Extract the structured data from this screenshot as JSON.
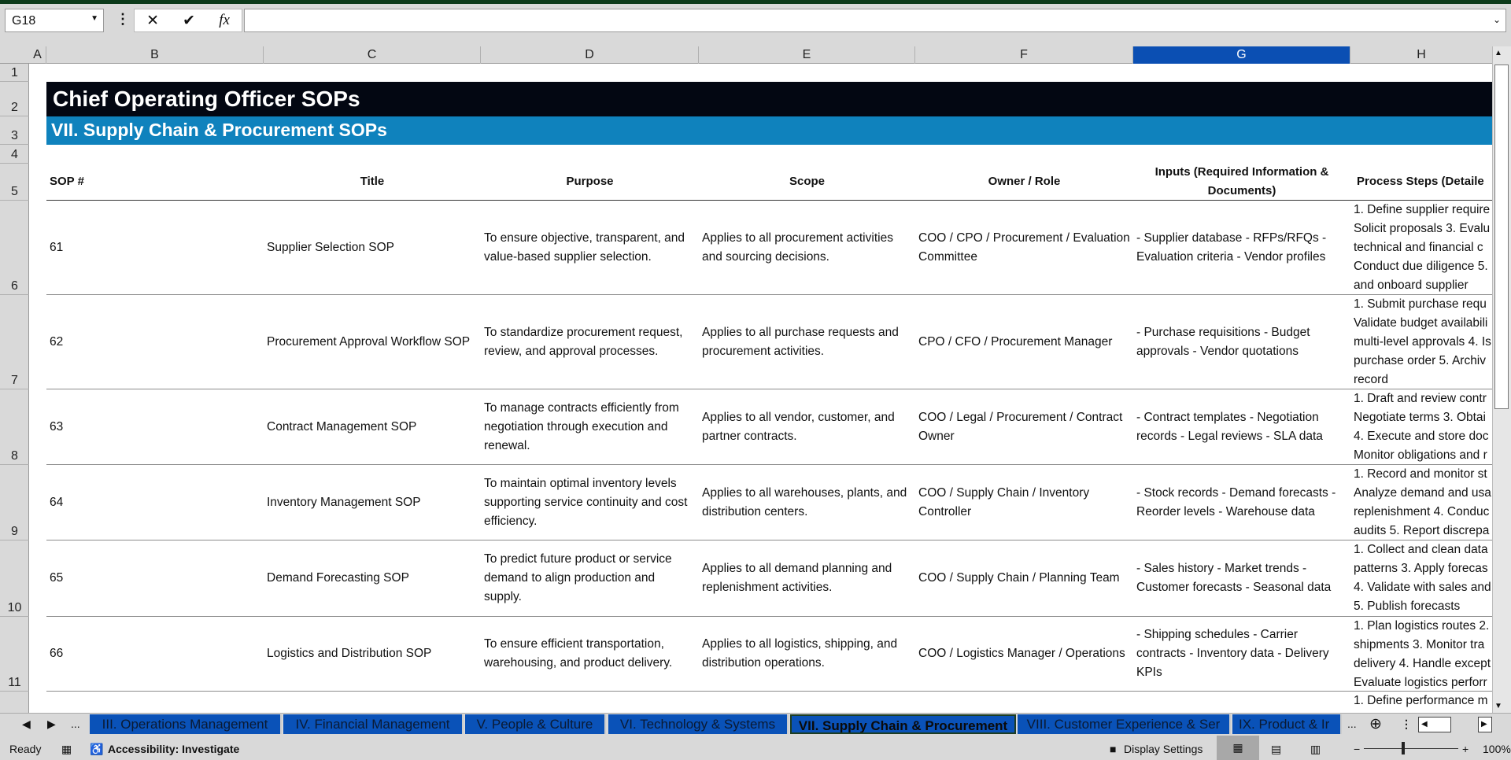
{
  "formula_bar": {
    "name_box": "G18",
    "formula": ""
  },
  "columns": [
    "A",
    "B",
    "C",
    "D",
    "E",
    "F",
    "G",
    "H"
  ],
  "selected_column": "G",
  "row_numbers": [
    "1",
    "2",
    "3",
    "4",
    "5",
    "6",
    "7",
    "8",
    "9",
    "10",
    "11"
  ],
  "sheet": {
    "title": "Chief Operating Officer SOPs",
    "subtitle": "VII. Supply Chain & Procurement SOPs",
    "headers": {
      "sop": "SOP #",
      "title": "Title",
      "purpose": "Purpose",
      "scope": "Scope",
      "owner": "Owner / Role",
      "inputs": "Inputs (Required Information & Documents)",
      "steps": "Process Steps (Detaile"
    },
    "rows": [
      {
        "sop": "61",
        "title": "Supplier Selection SOP",
        "purpose": "To ensure objective, transparent, and value-based supplier selection.",
        "scope": "Applies to all procurement activities and sourcing decisions.",
        "owner": "COO / CPO / Procurement / Evaluation Committee",
        "inputs": "- Supplier database - RFPs/RFQs - Evaluation criteria - Vendor profiles",
        "steps": [
          "1. Define supplier require",
          "Solicit proposals 3. Evalu",
          "technical and financial c",
          "Conduct due diligence 5.",
          "and onboard supplier"
        ]
      },
      {
        "sop": "62",
        "title": "Procurement Approval Workflow SOP",
        "purpose": "To standardize procurement request, review, and approval processes.",
        "scope": "Applies to all purchase requests and procurement activities.",
        "owner": "CPO / CFO / Procurement Manager",
        "inputs": "- Purchase requisitions - Budget approvals - Vendor quotations",
        "steps": [
          "1. Submit purchase requ",
          "Validate budget availabili",
          "multi-level approvals 4. Is",
          "purchase order 5. Archiv",
          "record"
        ]
      },
      {
        "sop": "63",
        "title": "Contract Management SOP",
        "purpose": "To manage contracts efficiently from negotiation through execution and renewal.",
        "scope": "Applies to all vendor, customer, and partner contracts.",
        "owner": "COO / Legal / Procurement / Contract Owner",
        "inputs": "- Contract templates - Negotiation records - Legal reviews - SLA data",
        "steps": [
          "1. Draft and review contr",
          "Negotiate terms 3. Obtai",
          "4. Execute and store doc",
          "Monitor obligations and r"
        ]
      },
      {
        "sop": "64",
        "title": "Inventory Management SOP",
        "purpose": "To maintain optimal inventory levels supporting service continuity and cost efficiency.",
        "scope": "Applies to all warehouses, plants, and distribution centers.",
        "owner": "COO / Supply Chain / Inventory Controller",
        "inputs": "- Stock records - Demand forecasts - Reorder levels - Warehouse data",
        "steps": [
          "1. Record and monitor st",
          "Analyze demand and usa",
          "replenishment 4. Conduc",
          "audits 5. Report discrepa"
        ]
      },
      {
        "sop": "65",
        "title": "Demand Forecasting SOP",
        "purpose": "To predict future product or service demand to align production and supply.",
        "scope": "Applies to all demand planning and replenishment activities.",
        "owner": "COO / Supply Chain / Planning Team",
        "inputs": "- Sales history - Market trends - Customer forecasts - Seasonal data",
        "steps": [
          "1. Collect and clean data",
          "patterns 3. Apply forecas",
          "4. Validate with sales and",
          "5. Publish forecasts"
        ]
      },
      {
        "sop": "66",
        "title": "Logistics and Distribution SOP",
        "purpose": "To ensure efficient transportation, warehousing, and product delivery.",
        "scope": "Applies to all logistics, shipping, and distribution operations.",
        "owner": "COO / Logistics Manager / Operations",
        "inputs": "- Shipping schedules - Carrier contracts - Inventory data - Delivery KPIs",
        "steps": [
          "1. Plan logistics routes 2.",
          "shipments 3. Monitor tra",
          "delivery 4. Handle except",
          "Evaluate logistics perforr"
        ]
      },
      {
        "sop": "",
        "title": "",
        "purpose": "",
        "scope": "",
        "owner": "",
        "inputs": "",
        "steps": [
          "1. Define performance m"
        ]
      }
    ]
  },
  "tabs": {
    "nav_more": "...",
    "items": [
      "III. Operations Management",
      "IV. Financial Management",
      "V. People & Culture",
      "VI. Technology & Systems",
      "VII. Supply Chain & Procurement",
      "VIII. Customer Experience & Ser",
      "IX. Product & Ir"
    ],
    "active": "VII. Supply Chain & Procurement",
    "more": "...",
    "tab_color": "#0a52b8"
  },
  "status": {
    "ready": "Ready",
    "accessibility": "Accessibility: Investigate",
    "display_settings": "Display Settings",
    "zoom": "100%"
  }
}
